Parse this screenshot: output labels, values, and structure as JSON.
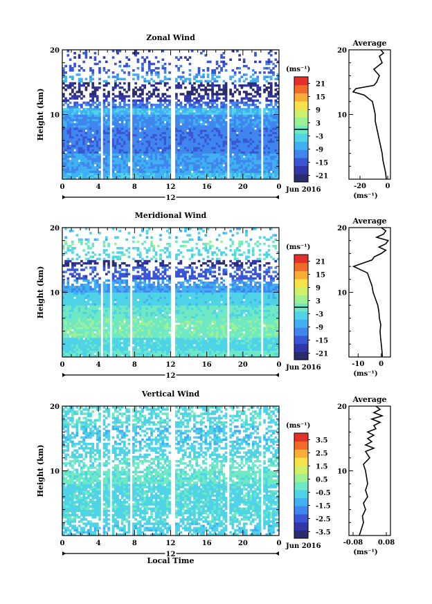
{
  "chart_data": [
    {
      "type": "heatmap",
      "title": "Zonal Wind",
      "ylabel": "Height (km)",
      "xlabel": "",
      "x_ticks": [
        "0",
        "4",
        "8",
        "12",
        "16",
        "20",
        "0"
      ],
      "y_ticks": [
        "20",
        "10"
      ],
      "ylim": [
        0,
        20
      ],
      "xlim": [
        0,
        24
      ],
      "date_label": "Jun 2016",
      "day_label": "12",
      "colorbar": {
        "unit": "(ms⁻¹)",
        "ticks": [
          "21",
          "15",
          "9",
          "3",
          "-3",
          "-9",
          "-15",
          "-21"
        ],
        "range": [
          -24,
          24
        ],
        "zero_line": 0
      },
      "data_gaps_hours": [
        [
          4.3,
          4.6
        ],
        [
          5.2,
          5.5
        ],
        [
          7.4,
          7.7
        ],
        [
          12.1,
          12.4
        ],
        [
          18.2,
          18.5
        ],
        [
          22.1,
          22.3
        ]
      ],
      "profile_bands": [
        {
          "from": 0,
          "to": 1,
          "value": -6
        },
        {
          "from": 1,
          "to": 4,
          "value": -9
        },
        {
          "from": 4,
          "to": 8,
          "value": -12
        },
        {
          "from": 8,
          "to": 10,
          "value": -10
        },
        {
          "from": 10,
          "to": 11,
          "value": -6
        },
        {
          "from": 11,
          "to": 12,
          "value": -12
        },
        {
          "from": 12,
          "to": 13,
          "value": -18
        },
        {
          "from": 13,
          "to": 14,
          "value": -22
        },
        {
          "from": 14,
          "to": 15,
          "value": -20
        },
        {
          "from": 15,
          "to": 16.5,
          "value": -8
        },
        {
          "from": 16.5,
          "to": 18,
          "value": -14
        },
        {
          "from": 18,
          "to": 20,
          "value": -16
        }
      ],
      "average": {
        "title": "Average",
        "xlabel": "(ms⁻¹)",
        "x_ticks": [
          "-20",
          "0"
        ],
        "xlim": [
          -28,
          2
        ],
        "y_ticks": [
          "20",
          "10"
        ],
        "height_km": [
          0,
          1,
          2,
          3,
          4,
          5,
          6,
          7,
          8,
          9,
          10,
          11,
          12,
          12.5,
          13,
          13.5,
          14,
          14.5,
          15,
          15.5,
          16,
          17,
          18,
          19,
          19.5,
          20
        ],
        "wind": [
          -1,
          -1.5,
          -2.5,
          -3.5,
          -4,
          -5,
          -6,
          -7,
          -8,
          -9,
          -9,
          -10,
          -11,
          -14,
          -17,
          -25,
          -23,
          -10,
          -8,
          -7,
          -6,
          -10,
          -4,
          -6,
          -3,
          -5
        ]
      }
    },
    {
      "type": "heatmap",
      "title": "Meridional Wind",
      "ylabel": "Height (km)",
      "xlabel": "",
      "x_ticks": [
        "0",
        "4",
        "8",
        "12",
        "16",
        "20",
        "0"
      ],
      "y_ticks": [
        "20",
        "10"
      ],
      "ylim": [
        0,
        20
      ],
      "xlim": [
        0,
        24
      ],
      "date_label": "Jun 2016",
      "day_label": "12",
      "colorbar": {
        "unit": "(ms⁻¹)",
        "ticks": [
          "21",
          "15",
          "9",
          "3",
          "-3",
          "-9",
          "-15",
          "-21"
        ],
        "range": [
          -24,
          24
        ],
        "zero_line": 0
      },
      "data_gaps_hours": [
        [
          4.3,
          4.6
        ],
        [
          5.2,
          5.5
        ],
        [
          7.4,
          7.7
        ],
        [
          12.1,
          12.4
        ],
        [
          18.2,
          18.5
        ],
        [
          22.1,
          22.3
        ]
      ],
      "profile_bands": [
        {
          "from": 0,
          "to": 1,
          "value": -1
        },
        {
          "from": 1,
          "to": 3,
          "value": -3
        },
        {
          "from": 3,
          "to": 6,
          "value": 1
        },
        {
          "from": 6,
          "to": 8,
          "value": -1
        },
        {
          "from": 8,
          "to": 10,
          "value": -4
        },
        {
          "from": 10,
          "to": 12,
          "value": -9
        },
        {
          "from": 12,
          "to": 13,
          "value": -15
        },
        {
          "from": 13,
          "to": 14,
          "value": -14
        },
        {
          "from": 14,
          "to": 15,
          "value": -20
        },
        {
          "from": 15,
          "to": 17,
          "value": -3
        },
        {
          "from": 17,
          "to": 18,
          "value": 1
        },
        {
          "from": 18,
          "to": 20,
          "value": -5
        }
      ],
      "average": {
        "title": "Average",
        "xlabel": "(ms⁻¹)",
        "x_ticks": [
          "-10",
          "0"
        ],
        "xlim": [
          -14,
          4
        ],
        "y_ticks": [
          "20",
          "10"
        ],
        "height_km": [
          0,
          1,
          2,
          3,
          4,
          5,
          6,
          7,
          8,
          9,
          10,
          11,
          12,
          13,
          13.5,
          14,
          14.5,
          15,
          15.5,
          16,
          16.5,
          17,
          17.5,
          18,
          18.5,
          19,
          19.5,
          20
        ],
        "wind": [
          0.5,
          0.3,
          0,
          -0.3,
          -0.5,
          -0.2,
          -0.8,
          -1,
          -1.5,
          -2.5,
          -3.5,
          -4,
          -5,
          -6,
          -9,
          -12,
          -8,
          -4,
          -3,
          0,
          2,
          -1,
          2,
          3,
          -2,
          1,
          2,
          0
        ]
      }
    },
    {
      "type": "heatmap",
      "title": "Vertical Wind",
      "ylabel": "Height (km)",
      "xlabel": "Local Time",
      "x_ticks": [
        "0",
        "4",
        "8",
        "12",
        "16",
        "20",
        "0"
      ],
      "y_ticks": [
        "20",
        "10"
      ],
      "ylim": [
        0,
        20
      ],
      "xlim": [
        0,
        24
      ],
      "date_label": "Jun 2016",
      "day_label": "12",
      "colorbar": {
        "unit": "(ms⁻¹)",
        "ticks": [
          "3.5",
          "2.5",
          "1.5",
          "0.5",
          "-0.5",
          "-1.5",
          "-2.5",
          "-3.5"
        ],
        "range": [
          -4,
          4
        ],
        "zero_line": null
      },
      "data_gaps_hours": [
        [
          4.3,
          4.6
        ],
        [
          5.2,
          5.5
        ],
        [
          7.4,
          7.7
        ],
        [
          12.1,
          12.4
        ],
        [
          18.2,
          18.5
        ],
        [
          22.1,
          22.3
        ]
      ],
      "profile_bands": [
        {
          "from": 0,
          "to": 2,
          "value": -0.7
        },
        {
          "from": 2,
          "to": 8,
          "value": -0.5
        },
        {
          "from": 8,
          "to": 12,
          "value": -0.2
        },
        {
          "from": 12,
          "to": 14,
          "value": -0.6
        },
        {
          "from": 14,
          "to": 17,
          "value": -0.8
        },
        {
          "from": 17,
          "to": 20,
          "value": -0.4
        }
      ],
      "average": {
        "title": "Average",
        "xlabel": "(ms⁻¹)",
        "x_ticks": [
          "-0.08",
          "0.08"
        ],
        "xlim": [
          -0.1,
          0.1
        ],
        "y_ticks": [
          "20",
          "10"
        ],
        "height_km": [
          0,
          1,
          2,
          3,
          4,
          5,
          6,
          7,
          8,
          9,
          10,
          11,
          12,
          13,
          13.5,
          14,
          14.5,
          15,
          15.5,
          16,
          16.5,
          17,
          17.5,
          18,
          18.5,
          19,
          19.5,
          20
        ],
        "wind": [
          -0.05,
          -0.04,
          -0.03,
          -0.035,
          -0.02,
          -0.03,
          -0.01,
          -0.02,
          -0.01,
          -0.015,
          -0.02,
          -0.03,
          0,
          -0.02,
          0.02,
          -0.02,
          0.01,
          -0.01,
          0.02,
          -0.01,
          0.03,
          0.02,
          0.05,
          0.01,
          0.06,
          0.02,
          0.05,
          0.03
        ]
      }
    }
  ]
}
